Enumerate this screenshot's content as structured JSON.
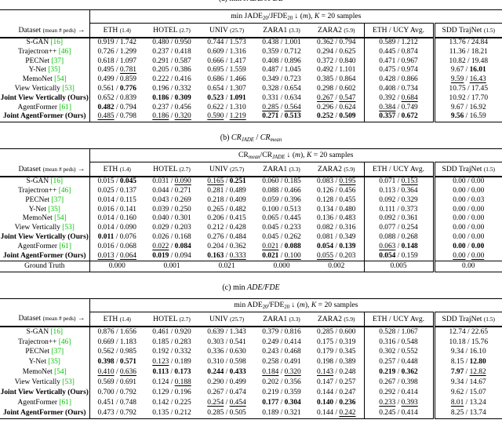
{
  "colors": {
    "citation_green": "#00c400",
    "rule_black": "#000000"
  },
  "columns": {
    "dataset_header": {
      "main": "Dataset",
      "small": "(mean # peds)",
      "arrow": "→"
    },
    "datasets": [
      {
        "name": "ETH",
        "peds": "(1.4)"
      },
      {
        "name": "HOTEL",
        "peds": "(2.7)"
      },
      {
        "name": "UNIV",
        "peds": "(25.7)"
      },
      {
        "name": "ZARA1",
        "peds": "(3.3)"
      },
      {
        "name": "ZARA2",
        "peds": "(5.9)"
      },
      {
        "name": "ETH / UCY Avg.",
        "peds": ""
      },
      {
        "name": "SDD TrajNet",
        "peds": "(1.5)"
      }
    ]
  },
  "tables": [
    {
      "caption": "(a) min //JADE/JFDE//",
      "group_header": "min JADE~20~/JFDE~20~ ↓ (//m//), //K// = 20 samples",
      "rows": [
        {
          "label": "S-GAN",
          "cite": "16",
          "bold": false,
          "cells": [
            "0.919 / 1.742",
            "0.480 / 0.950",
            "0.744 / 1.573",
            "0.438 / 1.001",
            "0.362 / 0.794",
            "0.589 / 1.212",
            "13.76 / 24.84"
          ]
        },
        {
          "label": "Trajectron++",
          "cite": "46",
          "bold": false,
          "cells": [
            "0.726 / 1.299",
            "0.237 / 0.418",
            "0.609 / 1.316",
            "0.359 / 0.712",
            "0.294 / 0.625",
            "0.445 / 0.874",
            "11.36 / 18.21"
          ]
        },
        {
          "label": "PECNet",
          "cite": "37",
          "bold": false,
          "cells": [
            "0.618 / 1.097",
            "0.291 / 0.587",
            "0.666 / 1.417",
            "0.408 / 0.896",
            "0.372 / 0.840",
            "0.471 / 0.967",
            "10.82 / 19.48"
          ]
        },
        {
          "label": "Y-Net",
          "cite": "35",
          "bold": false,
          "cells": [
            "0.495 / __0.781__",
            "0.205 / 0.386",
            "0.695 / 1.559",
            "0.487 / 1.045",
            "0.492 / 1.101",
            "0.475 / 0.974",
            "9.67 / **16.01**"
          ]
        },
        {
          "label": "MemoNet",
          "cite": "54",
          "bold": false,
          "cells": [
            "0.499 / 0.859",
            "0.222 / 0.416",
            "0.686 / 1.466",
            "0.349 / 0.723",
            "0.385 / 0.864",
            "0.428 / 0.866",
            "__9.59__ / __16.43__"
          ]
        },
        {
          "label": "View Vertically",
          "cite": "53",
          "bold": false,
          "cells": [
            "0.561 / **0.776**",
            "0.196 / 0.332",
            "0.654 / 1.307",
            "0.328 / 0.654",
            "0.298 / 0.602",
            "0.408 / 0.734",
            "10.75 / 17.45"
          ]
        },
        {
          "label": "Joint View Vertically (Ours)",
          "cite": "",
          "bold": true,
          "cells": [
            "0.652 / 0.839",
            "**0.186** / **0.309**",
            "**0.523** / **1.091**",
            "0.331 / 0.634",
            "__0.267__ / __0.547__",
            "0.392 / __0.684__",
            "10.92 / 17.70"
          ]
        },
        {
          "label": "AgentFormer",
          "cite": "61",
          "bold": false,
          "cells": [
            "**0.482** / 0.794",
            "0.237 / 0.456",
            "0.622 / 1.310",
            "__0.285__ / __0.564__",
            "0.296 / 0.624",
            "__0.384__ / 0.749",
            "9.67 / 16.92"
          ]
        },
        {
          "label": "Joint AgentFormer (Ours)",
          "cite": "",
          "bold": true,
          "cells": [
            "__0.485__ / 0.798",
            "__0.186__ / __0.320__",
            "__0.590__ / __1.219__",
            "**0.271** / **0.513**",
            "**0.252** / **0.509**",
            "**0.357** / **0.672**",
            "**9.56** / 16.59"
          ]
        }
      ],
      "ground_truth": null
    },
    {
      "caption": "(b) //CR//~//JADE//~ / //CR//~//mean//~",
      "group_header": "CR~//mean//~/CR~//JADE//~ ↓ (//m//), //K// = 20 samples",
      "rows": [
        {
          "label": "S-GAN",
          "cite": "16",
          "bold": false,
          "cells": [
            "0.015 / **0.045**",
            "0.031 / __0.090__",
            "__0.165__ / **0.251**",
            "0.060 / 0.185",
            "0.083 / __0.195__",
            "0.071 / __0.153__",
            "0.00 / 0.00"
          ]
        },
        {
          "label": "Trajectron++",
          "cite": "46",
          "bold": false,
          "cells": [
            "0.025 / 0.137",
            "0.044 / 0.271",
            "0.281 / 0.489",
            "0.088 / 0.466",
            "0.126 / 0.456",
            "0.113 / 0.364",
            "0.00 / 0.00"
          ]
        },
        {
          "label": "PECNet",
          "cite": "37",
          "bold": false,
          "cells": [
            "0.014 / 0.115",
            "0.043 / 0.269",
            "0.218 / 0.409",
            "0.059 / 0.396",
            "0.128 / 0.455",
            "0.092 / 0.329",
            "0.00 / 0.03"
          ]
        },
        {
          "label": "Y-Net",
          "cite": "35",
          "bold": false,
          "cells": [
            "0.016 / 0.141",
            "0.039 / 0.250",
            "0.265 / 0.482",
            "0.100 / 0.513",
            "0.134 / 0.480",
            "0.111 / 0.373",
            "0.00 / 0.00"
          ]
        },
        {
          "label": "MemoNet",
          "cite": "54",
          "bold": false,
          "cells": [
            "0.014 / 0.160",
            "0.040 / 0.301",
            "0.206 / 0.415",
            "0.065 / 0.445",
            "0.136 / 0.483",
            "0.092 / 0.361",
            "0.00 / 0.00"
          ]
        },
        {
          "label": "View Vertically",
          "cite": "53",
          "bold": false,
          "cells": [
            "0.014 / 0.090",
            "0.029 / 0.203",
            "0.212 / 0.428",
            "0.045 / 0.233",
            "0.082 / 0.316",
            "0.077 / 0.254",
            "0.00 / 0.00"
          ]
        },
        {
          "label": "Joint View Vertically (Ours)",
          "cite": "",
          "bold": true,
          "cells": [
            "**0.011** / 0.076",
            "0.026 / 0.168",
            "0.276 / 0.484",
            "0.045 / 0.262",
            "0.081 / 0.349",
            "0.088 / 0.268",
            "0.00 / 0.00"
          ]
        },
        {
          "label": "AgentFormer",
          "cite": "61",
          "bold": false,
          "cells": [
            "0.016 / 0.068",
            "__0.022__ / **0.084**",
            "0.204 / 0.362",
            "__0.021__ / **0.088**",
            "**0.054** / **0.139**",
            "__0.063__ / **0.148**",
            "**0.00** / **0.00**"
          ]
        },
        {
          "label": "Joint AgentFormer (Ours)",
          "cite": "",
          "bold": true,
          "cells": [
            "__0.013__ / __0.064__",
            "**0.019** / 0.094",
            "**0.163** / __0.333__",
            "**0.021** / __0.100__",
            "__0.055__ / 0.203",
            "**0.054** / 0.159",
            "__0.00__ / __0.00__"
          ]
        }
      ],
      "ground_truth": {
        "label": "Ground Truth",
        "cells": [
          "0.000",
          "0.001",
          "0.021",
          "0.000",
          "0.002",
          "0.005",
          "0.00"
        ]
      }
    },
    {
      "caption": "(c) min //ADE/FDE//",
      "group_header": "min ADE~20~/FDE~20~ ↓ (//m//), //K// = 20 samples",
      "rows": [
        {
          "label": "S-GAN",
          "cite": "16",
          "bold": false,
          "cells": [
            "0.876 / 1.656",
            "0.461 / 0.920",
            "0.639 / 1.343",
            "0.379 / 0.816",
            "0.285 / 0.600",
            "0.528 / 1.067",
            "12.74 / 22.65"
          ]
        },
        {
          "label": "Trajectron++",
          "cite": "46",
          "bold": false,
          "cells": [
            "0.669 / 1.183",
            "0.185 / 0.283",
            "0.303 / 0.541",
            "0.249 / 0.414",
            "0.175 / 0.319",
            "0.316 / 0.548",
            "10.18 / 15.76"
          ]
        },
        {
          "label": "PECNet",
          "cite": "37",
          "bold": false,
          "cells": [
            "0.562 / 0.985",
            "0.192 / 0.332",
            "0.336 / 0.630",
            "0.243 / 0.468",
            "0.179 / 0.345",
            "0.302 / 0.552",
            "9.34 / 16.10"
          ]
        },
        {
          "label": "Y-Net",
          "cite": "35",
          "bold": false,
          "cells": [
            "**0.398** / **0.571**",
            "__0.123__ / 0.189",
            "0.310 / 0.598",
            "0.258 / 0.491",
            "0.198 / 0.389",
            "0.257 / 0.448",
            "8.15 / **12.80**"
          ]
        },
        {
          "label": "MemoNet",
          "cite": "54",
          "bold": false,
          "cells": [
            "__0.410__ / __0.636__",
            "**0.113** / **0.173**",
            "**0.244** / **0.433**",
            "__0.184__ / __0.320__",
            "__0.143__ / 0.248",
            "**0.219** / **0.362**",
            "**7.97** / __12.82__"
          ]
        },
        {
          "label": "View Vertically",
          "cite": "53",
          "bold": false,
          "cells": [
            "0.569 / 0.691",
            "0.124 / __0.188__",
            "0.290 / 0.499",
            "0.202 / 0.356",
            "0.147 / 0.257",
            "0.267 / 0.398",
            "9.34 / 14.67"
          ]
        },
        {
          "label": "Joint View Vertically (Ours)",
          "cite": "",
          "bold": true,
          "cells": [
            "0.700 / 0.792",
            "0.129 / 0.196",
            "0.267 / 0.474",
            "0.219 / 0.359",
            "0.144 / 0.247",
            "0.292 / 0.414",
            "9.62 / 15.07"
          ]
        },
        {
          "label": "AgentFormer",
          "cite": "61",
          "bold": false,
          "cells": [
            "0.451 / 0.748",
            "0.142 / 0.225",
            "__0.254__ / __0.454__",
            "**0.177** / **0.304**",
            "**0.140** / **0.236**",
            "__0.233__ / __0.393__",
            "__8.01__ / 13.24"
          ]
        },
        {
          "label": "Joint AgentFormer (Ours)",
          "cite": "",
          "bold": true,
          "cells": [
            "0.473 / 0.792",
            "0.135 / 0.212",
            "0.285 / 0.505",
            "0.189 / 0.321",
            "0.144 / __0.242__",
            "0.245 / 0.414",
            "8.25 / 13.74"
          ]
        }
      ],
      "ground_truth": null
    }
  ]
}
